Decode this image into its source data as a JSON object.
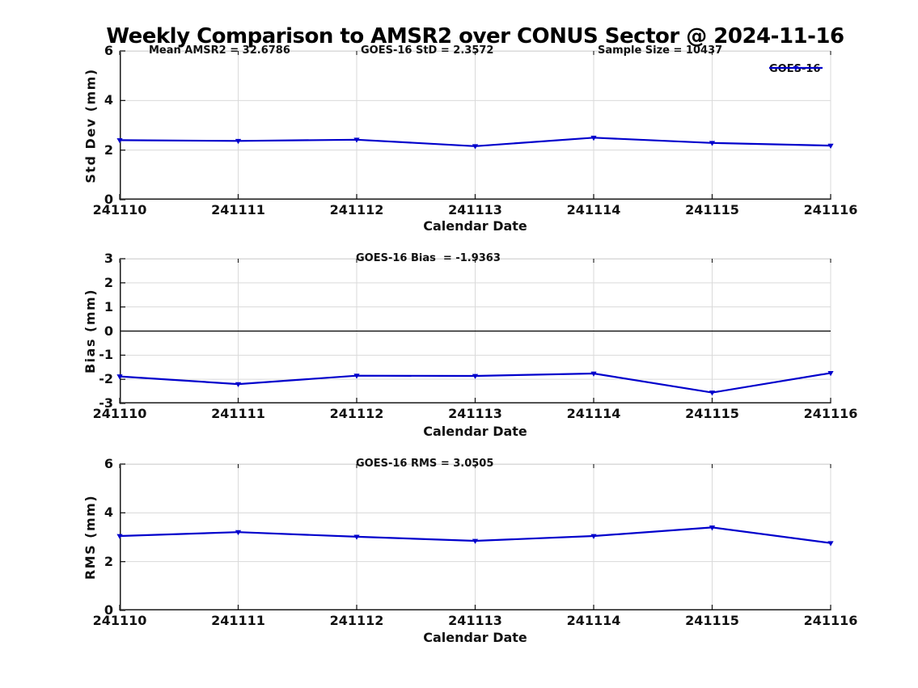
{
  "title": "Weekly Comparison to AMSR2 over CONUS Sector @ 2024-11-16",
  "colors": {
    "line": "#0000CC",
    "grid": "#DADADA",
    "axis": "#1A1A1A",
    "zero_line": "#000000",
    "text": "#111111",
    "background": "#FFFFFF"
  },
  "legend": {
    "label": "GOES-16"
  },
  "chart_data": [
    {
      "type": "line",
      "title": "",
      "ylabel": "Std Dev (mm)",
      "xlabel": "Calendar Date",
      "categories": [
        "241110",
        "241111",
        "241112",
        "241113",
        "241114",
        "241115",
        "241116"
      ],
      "ylim": [
        0,
        6
      ],
      "yticks": [
        0,
        2,
        4,
        6
      ],
      "grid": true,
      "legend_position": "top-right",
      "annotations": [
        "Mean AMSR2 = 32.6786",
        "GOES-16 StD = 2.3572",
        "Sample Size = 10437"
      ],
      "series": [
        {
          "name": "GOES-16",
          "marker": "triangle-down",
          "values": [
            2.4,
            2.37,
            2.42,
            2.16,
            2.5,
            2.29,
            2.18
          ]
        }
      ]
    },
    {
      "type": "line",
      "title": "",
      "ylabel": "Bias (mm)",
      "xlabel": "Calendar Date",
      "categories": [
        "241110",
        "241111",
        "241112",
        "241113",
        "241114",
        "241115",
        "241116"
      ],
      "ylim": [
        -3,
        3
      ],
      "yticks": [
        3,
        2,
        1,
        0,
        -1,
        -2,
        -3
      ],
      "grid": true,
      "zero_line": true,
      "annotations": [
        "GOES-16 Bias  = -1.9363"
      ],
      "series": [
        {
          "name": "GOES-16",
          "marker": "triangle-down",
          "values": [
            -1.88,
            -2.2,
            -1.85,
            -1.86,
            -1.76,
            -2.55,
            -1.74
          ]
        }
      ]
    },
    {
      "type": "line",
      "title": "",
      "ylabel": "RMS (mm)",
      "xlabel": "Calendar Date",
      "categories": [
        "241110",
        "241111",
        "241112",
        "241113",
        "241114",
        "241115",
        "241116"
      ],
      "ylim": [
        0,
        6
      ],
      "yticks": [
        0,
        2,
        4,
        6
      ],
      "grid": true,
      "annotations": [
        "GOES-16 RMS = 3.0505"
      ],
      "series": [
        {
          "name": "GOES-16",
          "marker": "triangle-down",
          "values": [
            3.05,
            3.21,
            3.02,
            2.85,
            3.05,
            3.4,
            2.76
          ]
        }
      ]
    }
  ]
}
